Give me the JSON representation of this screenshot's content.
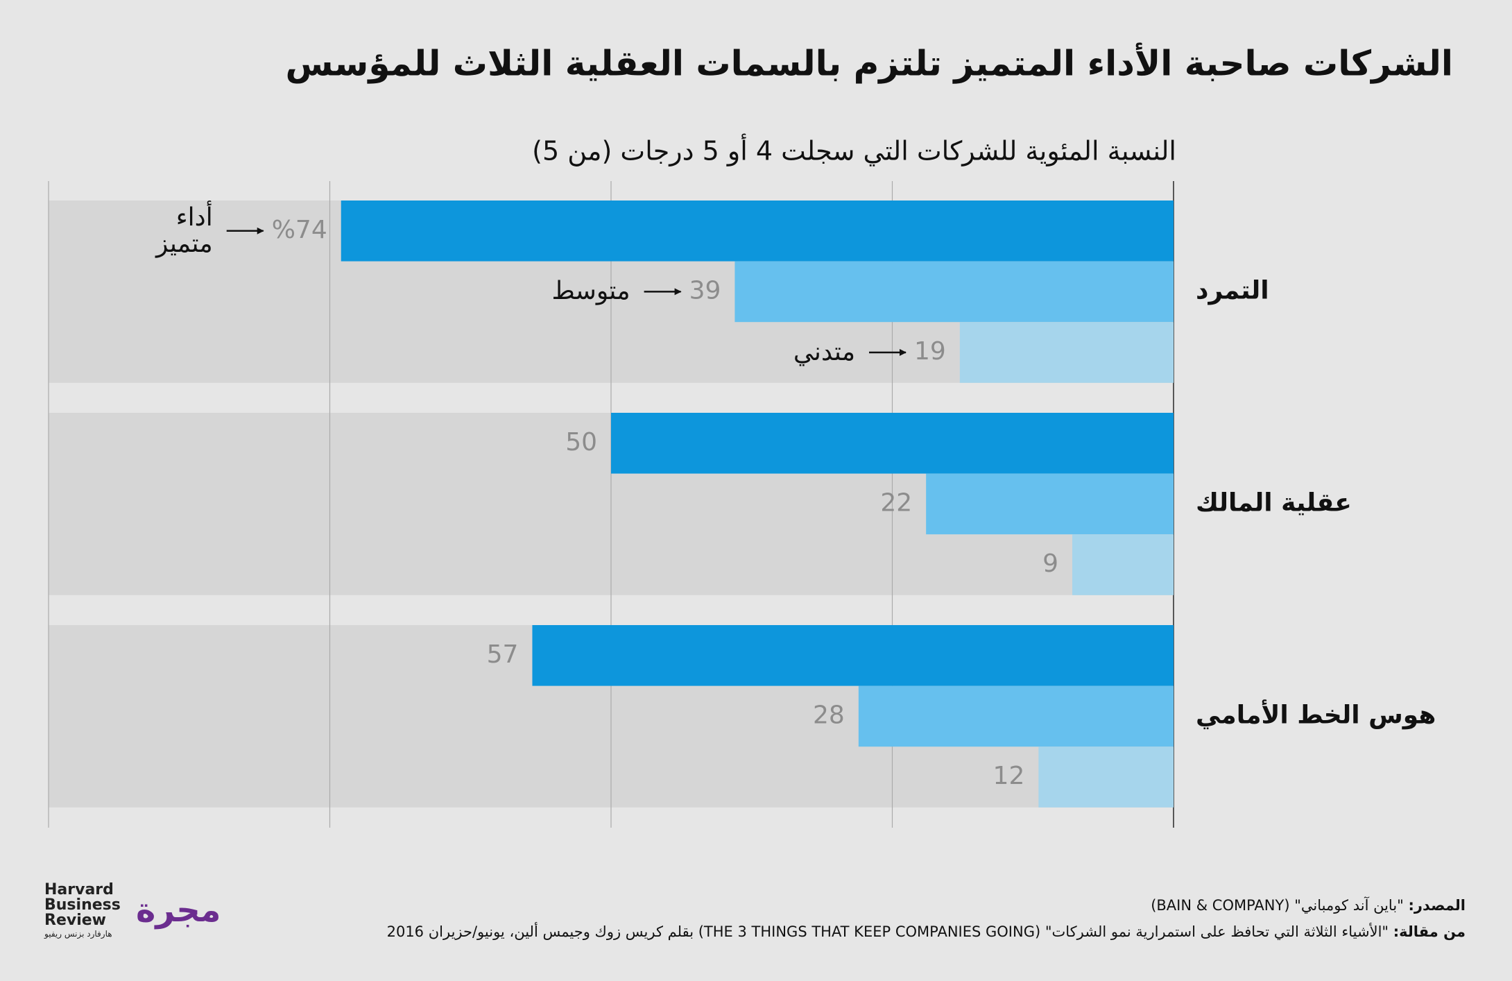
{
  "chart_data": {
    "type": "bar",
    "orientation": "horizontal",
    "title": "الشركات صاحبة الأداء المتميز تلتزم بالسمات العقلية الثلاث للمؤسس",
    "subtitle": "النسبة المئوية للشركات التي سجلت 4 أو 5 درجات (من 5)",
    "categories": [
      "التمرد",
      "عقلية المالك",
      "هوس الخط الأمامي"
    ],
    "series": [
      {
        "name": "أداء متميز",
        "color": "#0d96dc",
        "values": [
          74,
          50,
          57
        ],
        "value_labels": [
          "%74",
          "50",
          "57"
        ]
      },
      {
        "name": "متوسط",
        "color": "#66c0ee",
        "values": [
          39,
          22,
          28
        ]
      },
      {
        "name": "متدني",
        "color": "#a6d5ec",
        "values": [
          19,
          9,
          12
        ]
      }
    ],
    "xlim": [
      0,
      100
    ],
    "xticks": [
      0,
      25,
      50,
      75,
      100
    ],
    "grid": true
  },
  "footer": {
    "source_label": "المصدر:",
    "source_text": "\"باين آند كومباني\" (BAIN & COMPANY)",
    "article_label": "من مقالة:",
    "article_text": "\"الأشياء الثلاثة التي تحافظ على استمرارية نمو الشركات\" (THE 3 THINGS THAT KEEP COMPANIES GOING) بقلم كريس زوك وجيمس ألين، يونيو/حزيران 2016"
  },
  "logos": {
    "hbr": [
      "Harvard",
      "Business",
      "Review"
    ],
    "hbr_arabic": "هارفارد بزنس ريفيو",
    "majalla": "مجرة"
  }
}
